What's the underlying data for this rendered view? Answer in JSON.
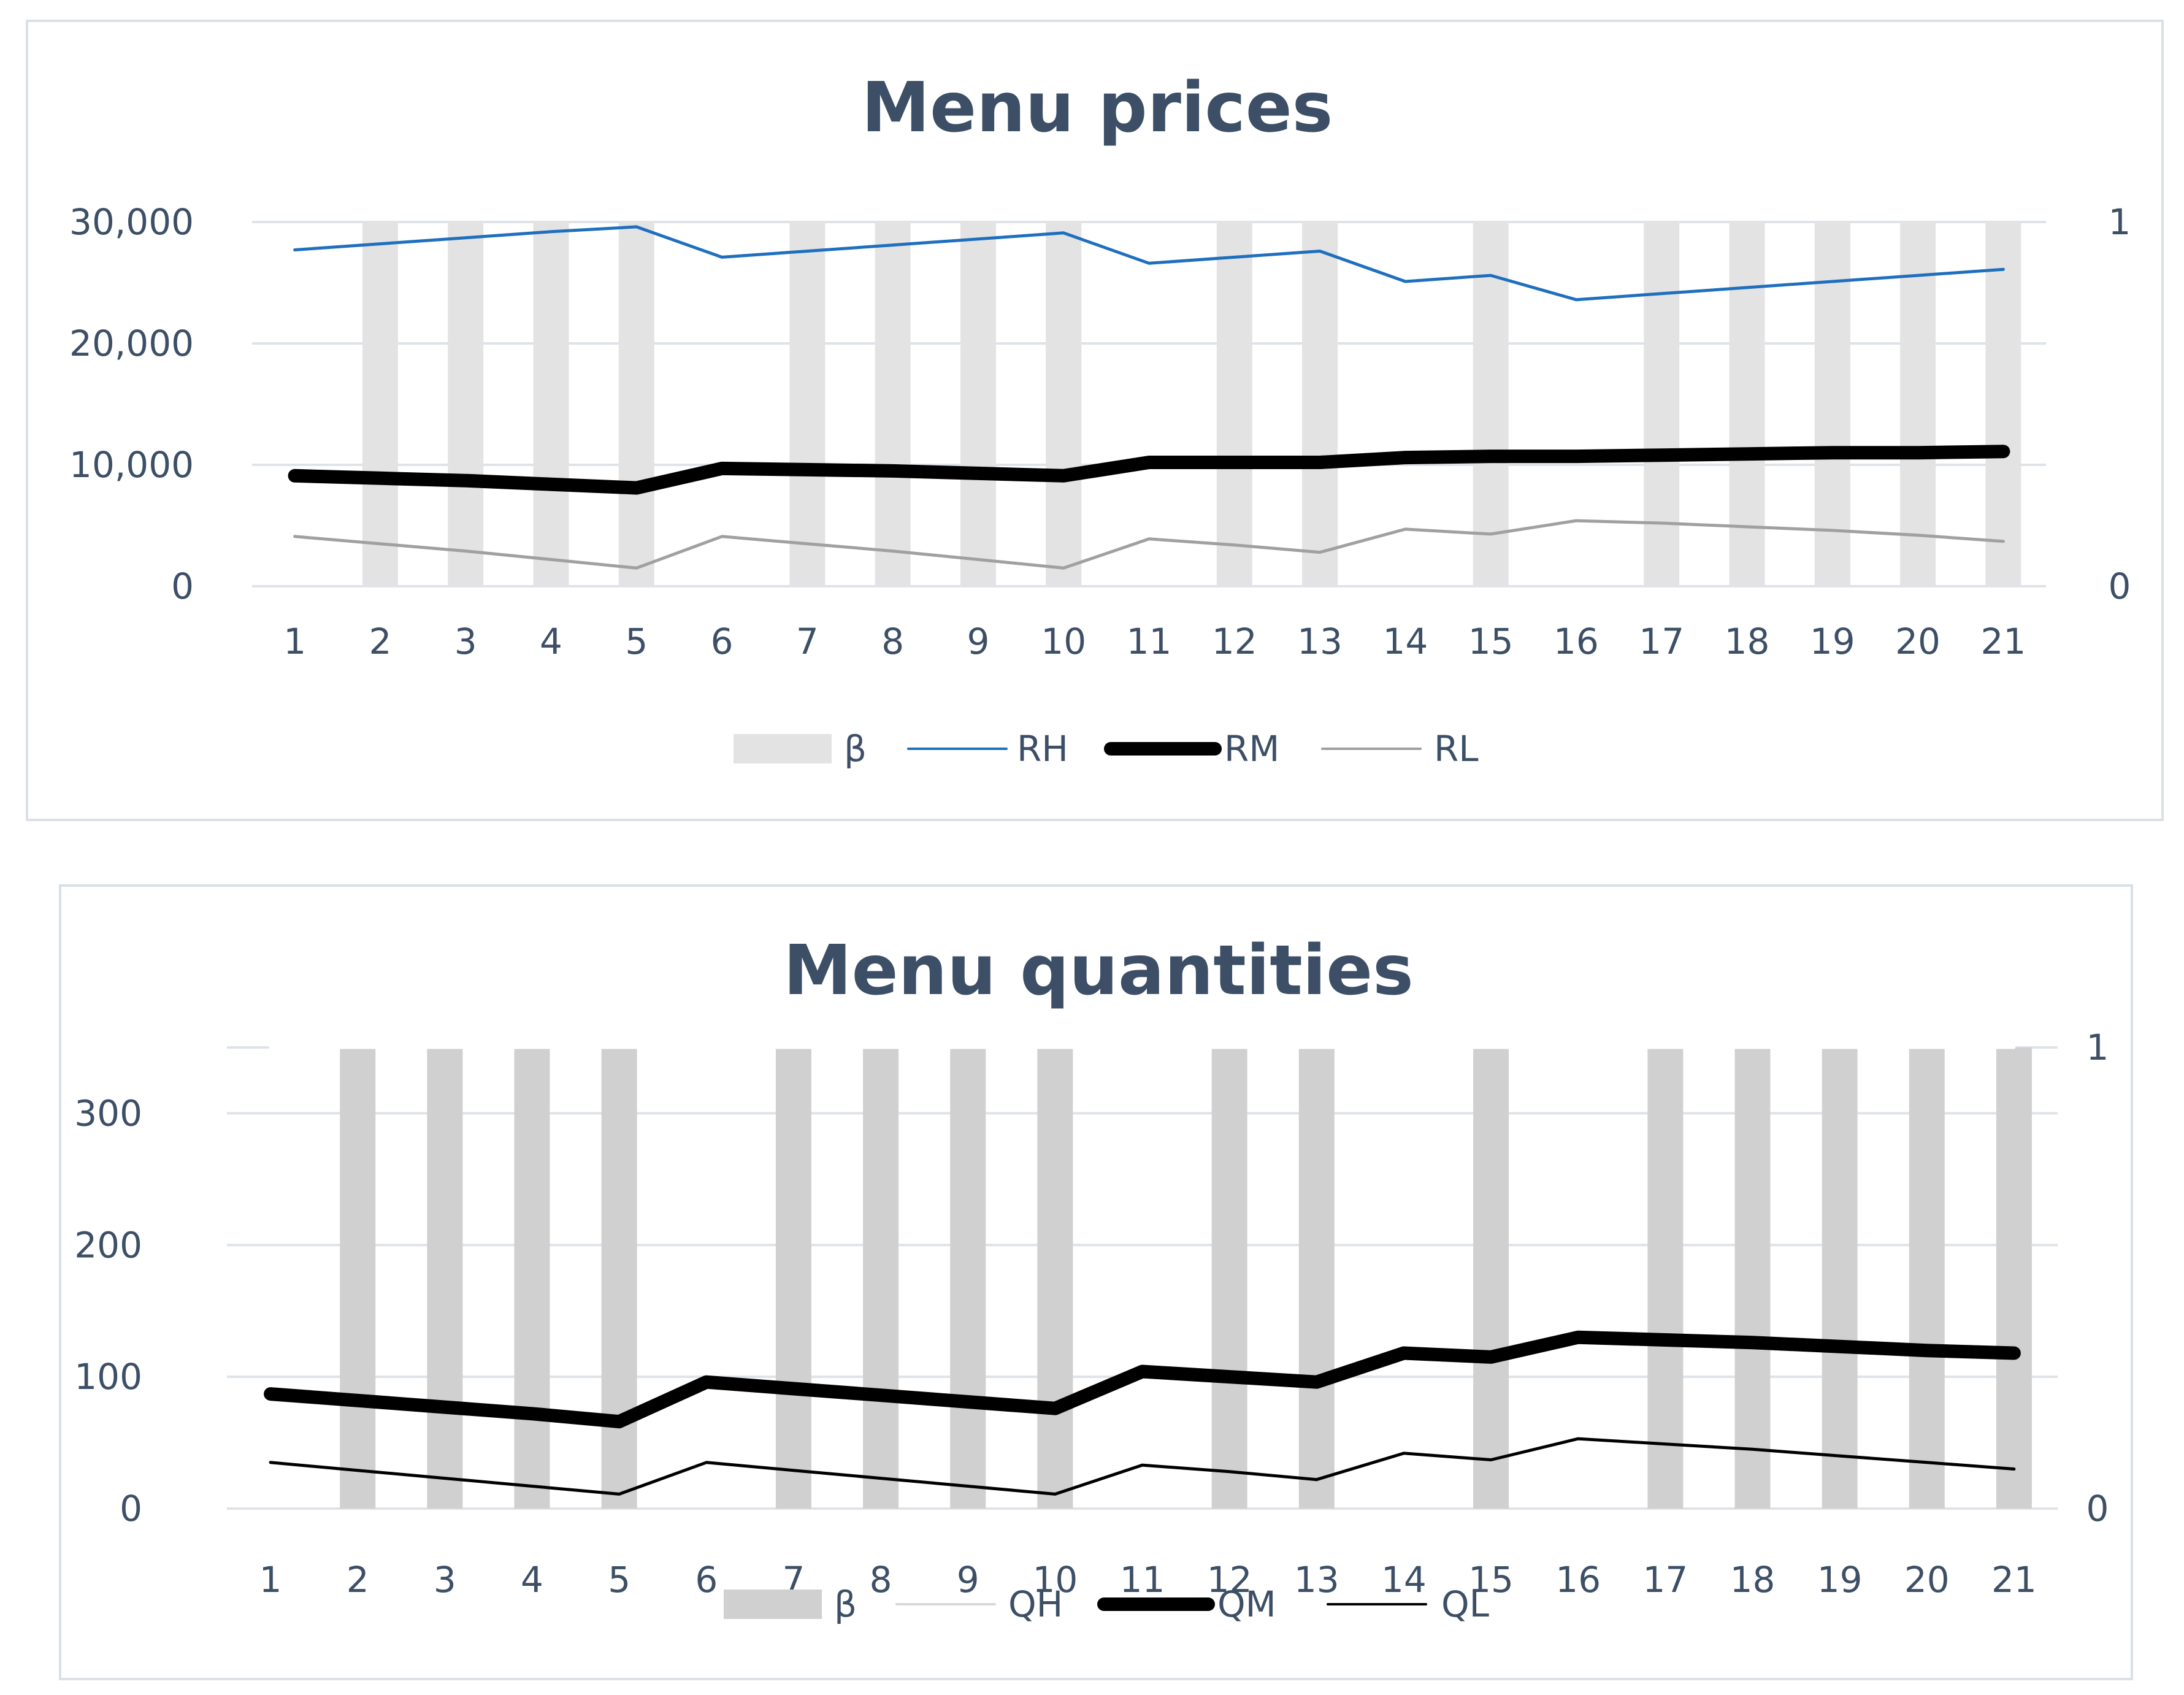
{
  "chart_data": [
    {
      "type": "bar+line",
      "title": "Menu prices",
      "categories": [
        "1",
        "2",
        "3",
        "4",
        "5",
        "6",
        "7",
        "8",
        "9",
        "10",
        "11",
        "12",
        "13",
        "14",
        "15",
        "16",
        "17",
        "18",
        "19",
        "20",
        "21"
      ],
      "y_left": {
        "range": [
          0,
          30000
        ],
        "ticks": [
          0,
          10000,
          20000,
          30000
        ],
        "tick_labels": [
          "0",
          "10,000",
          "20,000",
          "30,000"
        ]
      },
      "y_right": {
        "range": [
          0,
          1
        ],
        "ticks": [
          0,
          1
        ],
        "tick_labels": [
          "0",
          "1"
        ]
      },
      "grid": true,
      "legend_position": "bottom",
      "bars": {
        "name": "β",
        "axis": "right",
        "color": "#e3e3e3",
        "values": [
          0,
          1,
          1,
          1,
          1,
          0,
          1,
          1,
          1,
          1,
          0,
          1,
          1,
          0,
          1,
          0,
          1,
          1,
          1,
          1,
          1
        ]
      },
      "series": [
        {
          "name": "RH",
          "color": "#1f6fbf",
          "width": "thin",
          "values": [
            27700,
            28200,
            28700,
            29200,
            29600,
            27100,
            27600,
            28100,
            28600,
            29100,
            26600,
            27100,
            27600,
            25100,
            25600,
            23600,
            24100,
            24600,
            25100,
            25600,
            26100
          ]
        },
        {
          "name": "RM",
          "color": "#000000",
          "width": "thick",
          "values": [
            9100,
            8900,
            8700,
            8400,
            8100,
            9700,
            9600,
            9500,
            9300,
            9100,
            10200,
            10200,
            10200,
            10600,
            10700,
            10700,
            10800,
            10900,
            11000,
            11000,
            11100
          ]
        },
        {
          "name": "RL",
          "color": "#a0a0a0",
          "width": "thin",
          "values": [
            4100,
            3500,
            2900,
            2200,
            1500,
            4100,
            3500,
            2900,
            2200,
            1500,
            3900,
            3400,
            2800,
            4700,
            4300,
            5400,
            5200,
            4900,
            4600,
            4200,
            3700
          ]
        }
      ]
    },
    {
      "type": "bar+line",
      "title": "Menu quantities",
      "categories": [
        "1",
        "2",
        "3",
        "4",
        "5",
        "6",
        "7",
        "8",
        "9",
        "10",
        "11",
        "12",
        "13",
        "14",
        "15",
        "16",
        "17",
        "18",
        "19",
        "20",
        "21"
      ],
      "y_left": {
        "range": [
          0,
          350
        ],
        "ticks": [
          0,
          100,
          200,
          300
        ],
        "tick_labels": [
          "0",
          "100",
          "200",
          "300"
        ]
      },
      "y_right": {
        "range": [
          0,
          1
        ],
        "ticks": [
          0,
          1
        ],
        "tick_labels": [
          "0",
          "1"
        ]
      },
      "grid": true,
      "legend_position": "bottom",
      "bars": {
        "name": "β",
        "axis": "right",
        "color": "#d0d0d0",
        "values": [
          0,
          1,
          1,
          1,
          1,
          0,
          1,
          1,
          1,
          1,
          0,
          1,
          1,
          0,
          1,
          0,
          1,
          1,
          1,
          1,
          1
        ]
      },
      "series": [
        {
          "name": "QH",
          "color": "#ffffff",
          "width": "thin",
          "values": [
            350,
            350,
            350,
            350,
            350,
            350,
            350,
            350,
            350,
            350,
            350,
            350,
            350,
            350,
            350,
            350,
            350,
            350,
            350,
            350,
            350
          ]
        },
        {
          "name": "QM",
          "color": "#000000",
          "width": "thick",
          "values": [
            87,
            82,
            77,
            72,
            66,
            96,
            91,
            86,
            81,
            76,
            104,
            100,
            96,
            118,
            115,
            130,
            128,
            126,
            123,
            120,
            118
          ]
        },
        {
          "name": "QL",
          "color": "#000000",
          "width": "thin",
          "values": [
            35,
            29,
            23,
            17,
            11,
            35,
            29,
            23,
            17,
            11,
            33,
            28,
            22,
            42,
            37,
            53,
            49,
            45,
            40,
            35,
            30
          ]
        }
      ]
    }
  ]
}
